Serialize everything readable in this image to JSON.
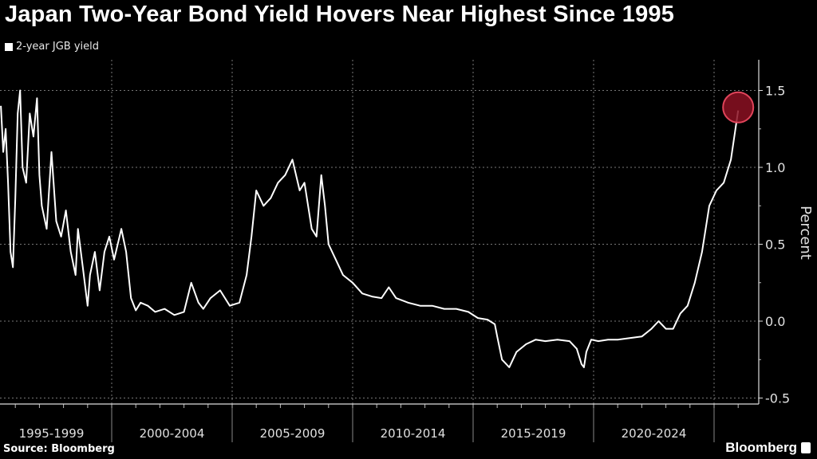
{
  "header": {
    "title": "Japan Two-Year Bond Yield Hovers Near Highest Since 1995"
  },
  "footer": {
    "source": "Source: Bloomberg",
    "brand": "Bloomberg"
  },
  "colors": {
    "background": "#000000",
    "line": "#ffffff",
    "highlight": "#8b1022",
    "highlight_edge": "#e0445a"
  },
  "chart_data": {
    "type": "line",
    "title": "Japan Two-Year Bond Yield Hovers Near Highest Since 1995",
    "xlabel": "",
    "ylabel": "Percent",
    "legend": {
      "entries": [
        "2-year JGB yield"
      ],
      "placement": "top-left"
    },
    "ylim": [
      -0.55,
      1.68
    ],
    "yticks": [
      1.5,
      1.0,
      0.5,
      0.0,
      -0.5
    ],
    "ytick_labels": [
      "1.5",
      "1.0",
      "0.5",
      "0.0",
      "-0.5"
    ],
    "xlim": [
      1995.4,
      2026.8
    ],
    "x_categories": [
      "1995-1999",
      "2000-2004",
      "2005-2009",
      "2010-2014",
      "2015-2019",
      "2020-2024"
    ],
    "grid": true,
    "highlight": {
      "x": 2026.0,
      "y": 1.39
    },
    "series": [
      {
        "name": "2-year JGB yield",
        "x": [
          1995.4,
          1995.5,
          1995.6,
          1995.7,
          1995.8,
          1995.9,
          1996.0,
          1996.1,
          1996.2,
          1996.3,
          1996.45,
          1996.6,
          1996.75,
          1996.9,
          1997.0,
          1997.1,
          1997.3,
          1997.5,
          1997.7,
          1997.9,
          1998.1,
          1998.3,
          1998.5,
          1998.6,
          1998.8,
          1999.0,
          1999.1,
          1999.3,
          1999.5,
          1999.7,
          1999.9,
          2000.1,
          2000.4,
          2000.6,
          2000.8,
          2001.0,
          2001.2,
          2001.5,
          2001.8,
          2002.2,
          2002.6,
          2003.0,
          2003.3,
          2003.6,
          2003.8,
          2004.1,
          2004.5,
          2004.9,
          2005.3,
          2005.6,
          2005.8,
          2006.0,
          2006.3,
          2006.6,
          2006.9,
          2007.2,
          2007.5,
          2007.8,
          2008.0,
          2008.3,
          2008.5,
          2008.7,
          2008.85,
          2009.0,
          2009.3,
          2009.6,
          2010.0,
          2010.4,
          2010.8,
          2011.2,
          2011.5,
          2011.8,
          2012.3,
          2012.8,
          2013.3,
          2013.8,
          2014.3,
          2014.8,
          2015.2,
          2015.6,
          2015.9,
          2016.0,
          2016.2,
          2016.5,
          2016.8,
          2017.2,
          2017.6,
          2018.0,
          2018.5,
          2019.0,
          2019.3,
          2019.5,
          2019.6,
          2019.7,
          2019.9,
          2020.2,
          2020.6,
          2021.0,
          2021.5,
          2022.0,
          2022.4,
          2022.7,
          2023.0,
          2023.3,
          2023.6,
          2023.9,
          2024.2,
          2024.5,
          2024.8,
          2025.1,
          2025.4,
          2025.7,
          2026.0
        ],
        "y": [
          1.4,
          1.1,
          1.25,
          0.9,
          0.45,
          0.35,
          0.8,
          1.35,
          1.5,
          1.0,
          0.9,
          1.35,
          1.2,
          1.45,
          0.95,
          0.75,
          0.6,
          1.1,
          0.65,
          0.55,
          0.72,
          0.45,
          0.3,
          0.6,
          0.35,
          0.1,
          0.3,
          0.45,
          0.2,
          0.45,
          0.55,
          0.4,
          0.6,
          0.45,
          0.15,
          0.07,
          0.12,
          0.1,
          0.06,
          0.08,
          0.04,
          0.06,
          0.25,
          0.12,
          0.08,
          0.15,
          0.2,
          0.1,
          0.12,
          0.3,
          0.55,
          0.85,
          0.75,
          0.8,
          0.9,
          0.95,
          1.05,
          0.85,
          0.9,
          0.6,
          0.55,
          0.95,
          0.75,
          0.5,
          0.4,
          0.3,
          0.25,
          0.18,
          0.16,
          0.15,
          0.22,
          0.15,
          0.12,
          0.1,
          0.1,
          0.08,
          0.08,
          0.06,
          0.02,
          0.01,
          -0.02,
          -0.1,
          -0.25,
          -0.3,
          -0.2,
          -0.15,
          -0.12,
          -0.13,
          -0.12,
          -0.13,
          -0.18,
          -0.28,
          -0.3,
          -0.2,
          -0.12,
          -0.13,
          -0.12,
          -0.12,
          -0.11,
          -0.1,
          -0.05,
          0.0,
          -0.05,
          -0.05,
          0.05,
          0.1,
          0.25,
          0.45,
          0.75,
          0.85,
          0.9,
          1.05,
          1.37
        ]
      }
    ]
  }
}
